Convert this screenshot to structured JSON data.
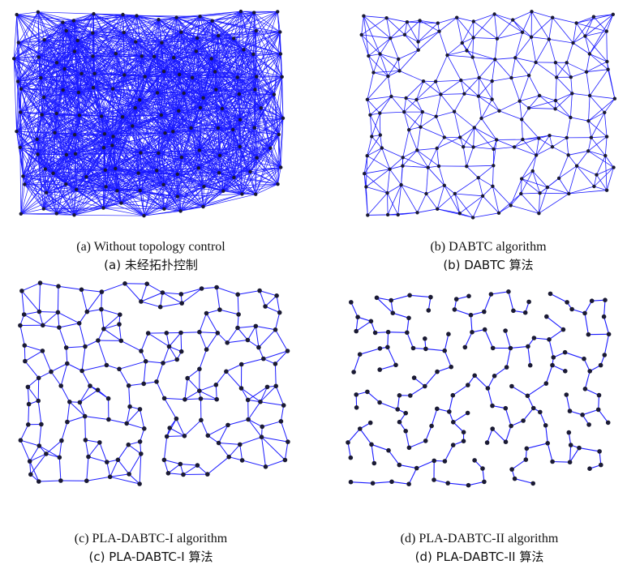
{
  "figures": [
    {
      "caption_en": "(a) Without topology control",
      "caption_cn": "(a)  未经拓扑控制",
      "edge_color": "#1a1aff",
      "node_color": "#1a1a33"
    },
    {
      "caption_en": "(b) DABTC algorithm",
      "caption_cn": "(b) DABTC 算法",
      "edge_color": "#1a1aff",
      "node_color": "#1a1a33"
    },
    {
      "caption_en": "(c) PLA-DABTC-I algorithm",
      "caption_cn": "(c) PLA-DABTC-I 算法",
      "edge_color": "#1a1aff",
      "node_color": "#1a1a33"
    },
    {
      "caption_en": "(d) PLA-DABTC-II algorithm",
      "caption_cn": "(d) PLA-DABTC-II 算法",
      "edge_color": "#1a1aff",
      "node_color": "#1a1a33"
    }
  ]
}
